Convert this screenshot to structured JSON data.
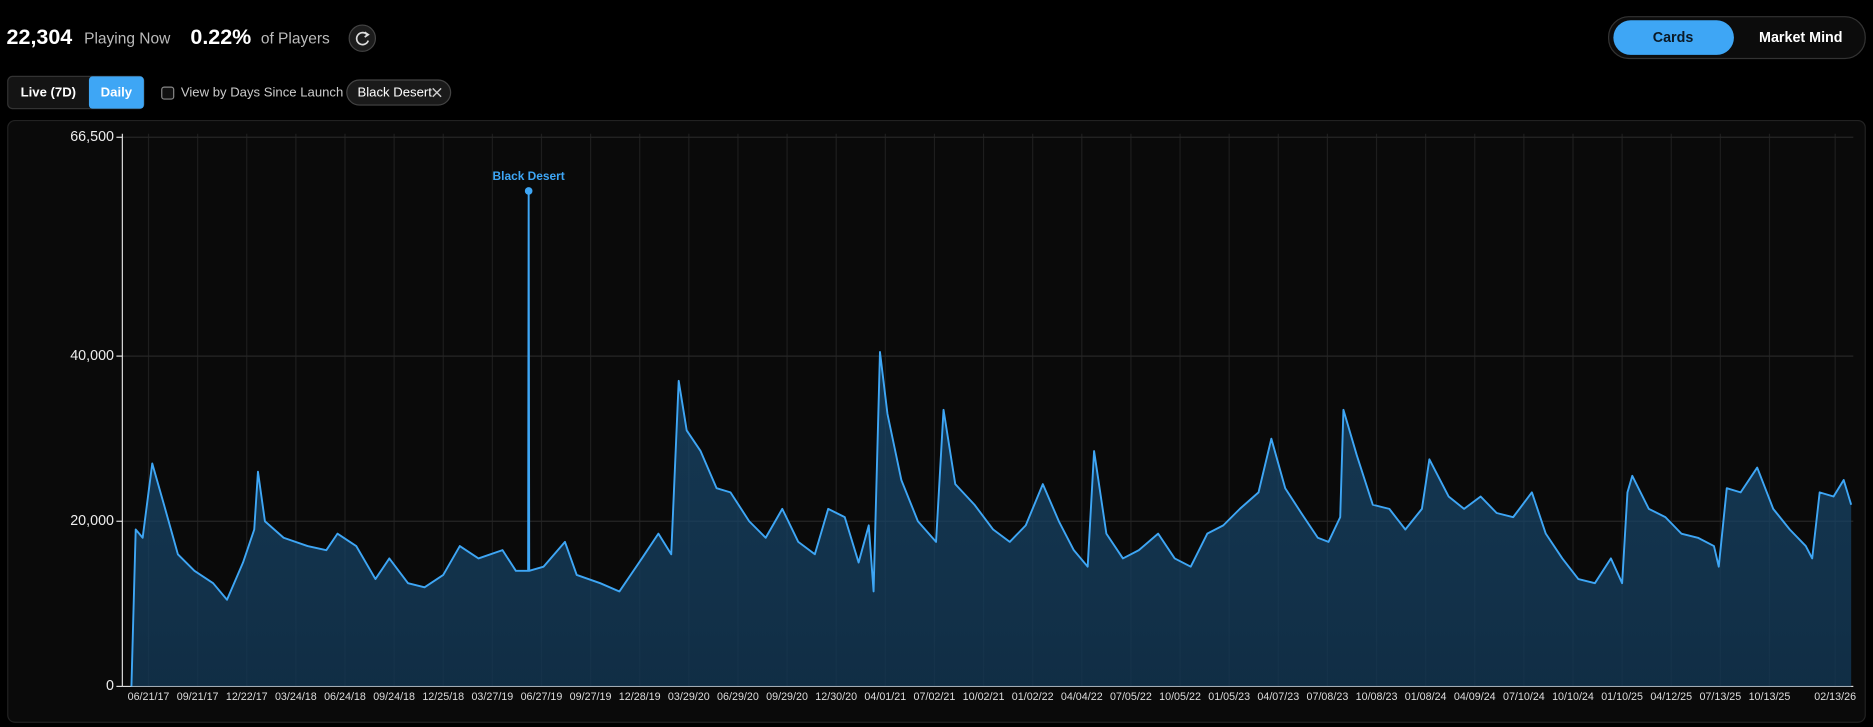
{
  "header": {
    "players_now": "22,304",
    "players_now_label": "Playing Now",
    "share": "0.22%",
    "share_label": "of Players"
  },
  "view_toggle": [
    "Cards",
    "Market Mind"
  ],
  "controls": {
    "range_buttons": [
      "Live (7D)",
      "Daily"
    ],
    "checkbox_label": "View by Days Since Launch",
    "tag": "Black Desert"
  },
  "chart_data": {
    "type": "line",
    "color": "#3ea6f5",
    "grid": true,
    "xlim": [
      "2017-05-03",
      "2026-03-19"
    ],
    "ylim": [
      0,
      66500
    ],
    "yticks": [
      0,
      {
        "value": 20000,
        "label": "20,000"
      },
      {
        "value": 40000,
        "label": "40,000"
      },
      {
        "value": 66500,
        "label": "66,500"
      }
    ],
    "xticks": [
      {
        "value": "2017-06-21",
        "label": "06/21/17"
      },
      {
        "value": "2017-09-21",
        "label": "09/21/17"
      },
      {
        "value": "2017-12-22",
        "label": "12/22/17"
      },
      {
        "value": "2018-03-24",
        "label": "03/24/18"
      },
      {
        "value": "2018-06-24",
        "label": "06/24/18"
      },
      {
        "value": "2018-09-24",
        "label": "09/24/18"
      },
      {
        "value": "2018-12-25",
        "label": "12/25/18"
      },
      {
        "value": "2019-03-27",
        "label": "03/27/19"
      },
      {
        "value": "2019-06-27",
        "label": "06/27/19"
      },
      {
        "value": "2019-09-27",
        "label": "09/27/19"
      },
      {
        "value": "2019-12-28",
        "label": "12/28/19"
      },
      {
        "value": "2020-03-29",
        "label": "03/29/20"
      },
      {
        "value": "2020-06-29",
        "label": "06/29/20"
      },
      {
        "value": "2020-09-29",
        "label": "09/29/20"
      },
      {
        "value": "2020-12-30",
        "label": "12/30/20"
      },
      {
        "value": "2021-04-01",
        "label": "04/01/21"
      },
      {
        "value": "2021-07-02",
        "label": "07/02/21"
      },
      {
        "value": "2021-10-02",
        "label": "10/02/21"
      },
      {
        "value": "2022-01-02",
        "label": "01/02/22"
      },
      {
        "value": "2022-04-04",
        "label": "04/04/22"
      },
      {
        "value": "2022-07-05",
        "label": "07/05/22"
      },
      {
        "value": "2022-10-05",
        "label": "10/05/22"
      },
      {
        "value": "2023-01-05",
        "label": "01/05/23"
      },
      {
        "value": "2023-04-07",
        "label": "04/07/23"
      },
      {
        "value": "2023-07-08",
        "label": "07/08/23"
      },
      {
        "value": "2023-10-08",
        "label": "10/08/23"
      },
      {
        "value": "2024-01-08",
        "label": "01/08/24"
      },
      {
        "value": "2024-04-09",
        "label": "04/09/24"
      },
      {
        "value": "2024-07-10",
        "label": "07/10/24"
      },
      {
        "value": "2024-10-10",
        "label": "10/10/24"
      },
      {
        "value": "2025-01-10",
        "label": "01/10/25"
      },
      {
        "value": "2025-04-12",
        "label": "04/12/25"
      },
      {
        "value": "2025-07-13",
        "label": "07/13/25"
      },
      {
        "value": "2025-10-13",
        "label": "10/13/25"
      },
      {
        "value": "2026-02-13",
        "label": "02/13/26"
      }
    ],
    "x": [
      "2017-05-20",
      "2017-05-28",
      "2017-06-10",
      "2017-06-28",
      "2017-07-20",
      "2017-08-15",
      "2017-09-15",
      "2017-10-20",
      "2017-11-15",
      "2017-12-15",
      "2018-01-05",
      "2018-01-12",
      "2018-01-25",
      "2018-03-01",
      "2018-04-15",
      "2018-05-20",
      "2018-06-10",
      "2018-07-15",
      "2018-08-20",
      "2018-09-15",
      "2018-10-20",
      "2018-11-20",
      "2018-12-25",
      "2019-01-25",
      "2019-03-01",
      "2019-04-15",
      "2019-05-10",
      "2019-06-02",
      "2019-06-03",
      "2019-06-04",
      "2019-07-01",
      "2019-08-10",
      "2019-09-01",
      "2019-10-15",
      "2019-11-20",
      "2020-01-01",
      "2020-02-01",
      "2020-02-25",
      "2020-03-10",
      "2020-03-25",
      "2020-04-20",
      "2020-05-20",
      "2020-06-15",
      "2020-07-20",
      "2020-08-20",
      "2020-09-20",
      "2020-10-20",
      "2020-11-20",
      "2020-12-15",
      "2021-01-15",
      "2021-02-10",
      "2021-03-01",
      "2021-03-10",
      "2021-03-22",
      "2021-04-05",
      "2021-05-01",
      "2021-06-01",
      "2021-07-05",
      "2021-07-19",
      "2021-08-10",
      "2021-09-15",
      "2021-10-20",
      "2021-11-20",
      "2021-12-20",
      "2022-01-21",
      "2022-02-20",
      "2022-03-20",
      "2022-04-15",
      "2022-04-27",
      "2022-05-20",
      "2022-06-20",
      "2022-07-20",
      "2022-08-25",
      "2022-09-25",
      "2022-10-25",
      "2022-11-25",
      "2022-12-25",
      "2023-01-25",
      "2023-03-01",
      "2023-03-25",
      "2023-04-20",
      "2023-05-20",
      "2023-06-20",
      "2023-07-10",
      "2023-08-01",
      "2023-08-07",
      "2023-09-01",
      "2023-10-01",
      "2023-11-01",
      "2023-12-01",
      "2024-01-01",
      "2024-01-15",
      "2024-02-20",
      "2024-03-20",
      "2024-04-20",
      "2024-05-20",
      "2024-06-20",
      "2024-07-25",
      "2024-08-20",
      "2024-09-20",
      "2024-10-20",
      "2024-11-20",
      "2024-12-20",
      "2025-01-10",
      "2025-01-20",
      "2025-01-29",
      "2025-03-01",
      "2025-04-01",
      "2025-05-01",
      "2025-06-01",
      "2025-07-01",
      "2025-07-10",
      "2025-07-25",
      "2025-08-20",
      "2025-09-20",
      "2025-10-20",
      "2025-11-20",
      "2025-12-20",
      "2026-01-01",
      "2026-01-15",
      "2026-02-10",
      "2026-03-01",
      "2026-03-15"
    ],
    "series": [
      {
        "name": "Black Desert",
        "color": "#3ea6f5",
        "values": [
          0,
          19000,
          18000,
          27000,
          22000,
          16000,
          14000,
          12500,
          10500,
          15000,
          19000,
          26000,
          20000,
          18000,
          17000,
          16500,
          18500,
          17000,
          13000,
          15500,
          12500,
          12000,
          13500,
          17000,
          15500,
          16500,
          14000,
          14000,
          60000,
          14000,
          14500,
          17500,
          13500,
          12500,
          11500,
          15500,
          18500,
          16000,
          37000,
          31000,
          28500,
          24000,
          23500,
          20000,
          18000,
          21500,
          17500,
          16000,
          21500,
          20500,
          15000,
          19500,
          11500,
          40500,
          33000,
          25000,
          20000,
          17500,
          33500,
          24500,
          22000,
          19000,
          17500,
          19500,
          24500,
          20000,
          16500,
          14500,
          28500,
          18500,
          15500,
          16500,
          18500,
          15500,
          14500,
          18500,
          19500,
          21500,
          23500,
          30000,
          24000,
          21000,
          18000,
          17500,
          20500,
          33500,
          28000,
          22000,
          21500,
          19000,
          21500,
          27500,
          23000,
          21500,
          23000,
          21000,
          20500,
          23500,
          18500,
          15500,
          13000,
          12500,
          15500,
          12500,
          23500,
          25500,
          21500,
          20500,
          18500,
          18000,
          17000,
          14500,
          24000,
          23500,
          26500,
          21500,
          19000,
          17000,
          15500,
          23500,
          23000,
          25000,
          22000
        ]
      }
    ],
    "annotation": {
      "text": "Black Desert",
      "x": "2019-06-03",
      "y": 60000
    }
  }
}
